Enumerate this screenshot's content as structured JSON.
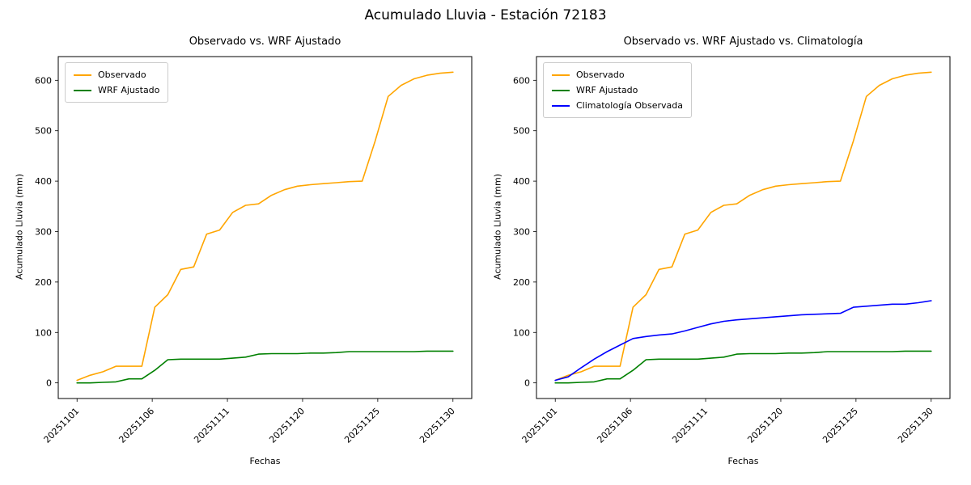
{
  "figure": {
    "title": "Acumulado Lluvia - Estación 72183"
  },
  "chart_data": [
    {
      "type": "line",
      "title": "Observado vs. WRF Ajustado",
      "xlabel": "Fechas",
      "ylabel": "Acumulado Lluvia (mm)",
      "legend_position": "upper-left",
      "grid": false,
      "ylim": [
        -31,
        647
      ],
      "y_ticks": [
        0,
        100,
        200,
        300,
        400,
        500,
        600
      ],
      "x_tick_labels": [
        "20251101",
        "20251106",
        "20251111",
        "20251120",
        "20251125",
        "20251130"
      ],
      "categories": [
        "20251101",
        "20251102",
        "20251103",
        "20251104",
        "20251105",
        "20251106",
        "20251107",
        "20251108",
        "20251109",
        "20251110",
        "20251111",
        "20251112",
        "20251113",
        "20251114",
        "20251115",
        "20251116",
        "20251117",
        "20251118",
        "20251119",
        "20251120",
        "20251121",
        "20251122",
        "20251123",
        "20251124",
        "20251125",
        "20251126",
        "20251127",
        "20251128",
        "20251129",
        "20251130"
      ],
      "series": [
        {
          "name": "Observado",
          "color": "#FFA500",
          "values": [
            5,
            15,
            22,
            33,
            33,
            33,
            150,
            175,
            225,
            230,
            295,
            303,
            338,
            352,
            355,
            372,
            383,
            390,
            393,
            395,
            397,
            399,
            400,
            480,
            568,
            590,
            603,
            610,
            614,
            616
          ]
        },
        {
          "name": "WRF Ajustado",
          "color": "#008000",
          "values": [
            0,
            0,
            1,
            2,
            8,
            8,
            25,
            46,
            47,
            47,
            47,
            47,
            49,
            51,
            57,
            58,
            58,
            58,
            59,
            59,
            60,
            62,
            62,
            62,
            62,
            62,
            62,
            63,
            63,
            63
          ]
        }
      ]
    },
    {
      "type": "line",
      "title": "Observado vs. WRF Ajustado vs. Climatología",
      "xlabel": "Fechas",
      "ylabel": "Acumulado Lluvia (mm)",
      "legend_position": "upper-left",
      "grid": false,
      "ylim": [
        -31,
        647
      ],
      "y_ticks": [
        0,
        100,
        200,
        300,
        400,
        500,
        600
      ],
      "x_tick_labels": [
        "20251101",
        "20251106",
        "20251111",
        "20251120",
        "20251125",
        "20251130"
      ],
      "categories": [
        "20251101",
        "20251102",
        "20251103",
        "20251104",
        "20251105",
        "20251106",
        "20251107",
        "20251108",
        "20251109",
        "20251110",
        "20251111",
        "20251112",
        "20251113",
        "20251114",
        "20251115",
        "20251116",
        "20251117",
        "20251118",
        "20251119",
        "20251120",
        "20251121",
        "20251122",
        "20251123",
        "20251124",
        "20251125",
        "20251126",
        "20251127",
        "20251128",
        "20251129",
        "20251130"
      ],
      "series": [
        {
          "name": "Observado",
          "color": "#FFA500",
          "values": [
            5,
            15,
            22,
            33,
            33,
            33,
            150,
            175,
            225,
            230,
            295,
            303,
            338,
            352,
            355,
            372,
            383,
            390,
            393,
            395,
            397,
            399,
            400,
            480,
            568,
            590,
            603,
            610,
            614,
            616
          ]
        },
        {
          "name": "WRF Ajustado",
          "color": "#008000",
          "values": [
            0,
            0,
            1,
            2,
            8,
            8,
            25,
            46,
            47,
            47,
            47,
            47,
            49,
            51,
            57,
            58,
            58,
            58,
            59,
            59,
            60,
            62,
            62,
            62,
            62,
            62,
            62,
            63,
            63,
            63
          ]
        },
        {
          "name": "Climatología Observada",
          "color": "#0000FF",
          "values": [
            5,
            12,
            30,
            47,
            62,
            75,
            88,
            92,
            95,
            97,
            103,
            110,
            117,
            122,
            125,
            127,
            129,
            131,
            133,
            135,
            136,
            137,
            138,
            150,
            152,
            154,
            156,
            156,
            159,
            163
          ]
        }
      ]
    }
  ]
}
